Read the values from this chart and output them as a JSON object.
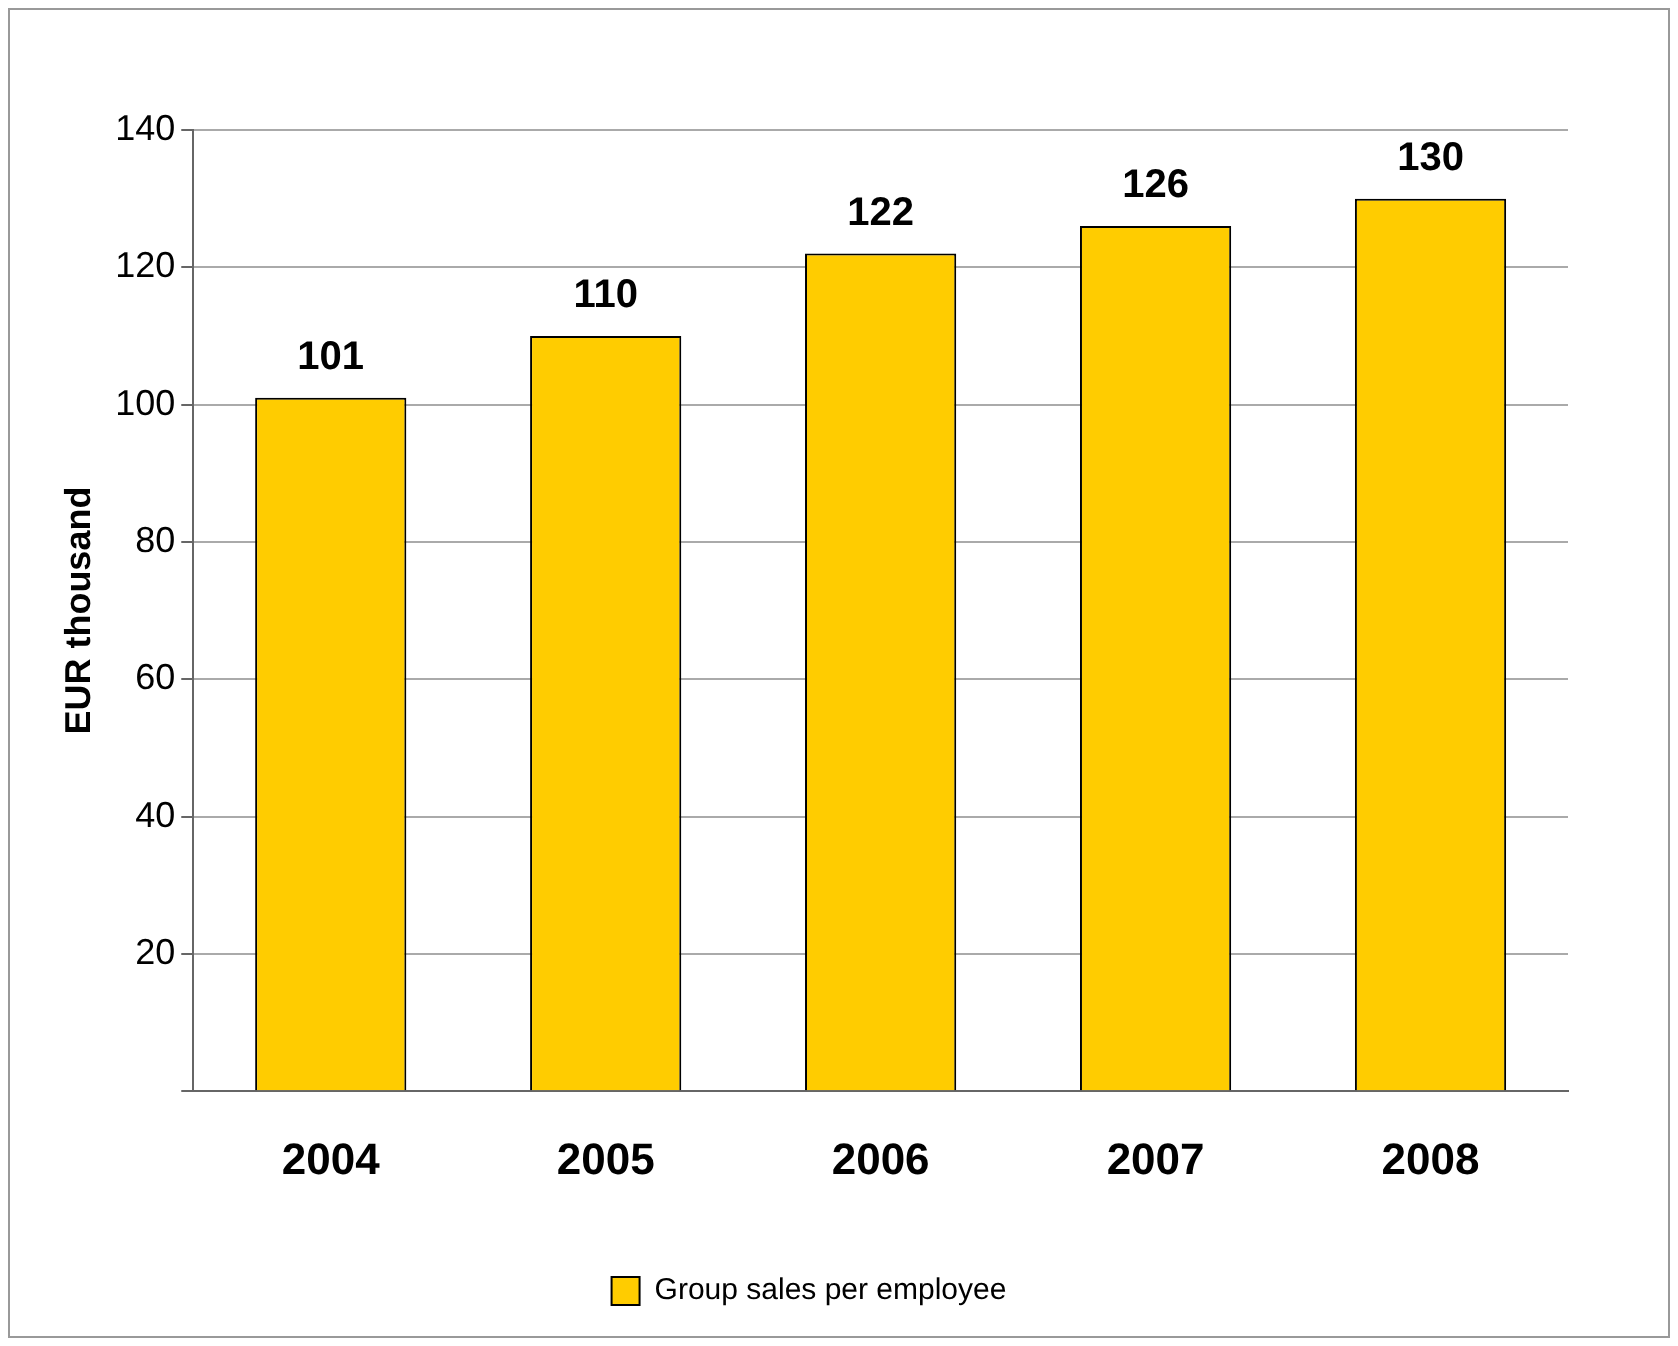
{
  "chart_data": {
    "type": "bar",
    "ylabel": "EUR thousand",
    "categories": [
      "2004",
      "2005",
      "2006",
      "2007",
      "2008"
    ],
    "series": [
      {
        "name": "Group sales per employee",
        "color": "#ffcc00",
        "values": [
          101,
          110,
          122,
          126,
          130
        ]
      }
    ],
    "ylim": [
      0,
      140
    ],
    "yticks": [
      {
        "value": 0,
        "label": null
      },
      20,
      40,
      60,
      80,
      100,
      120,
      140
    ],
    "grid": "y",
    "legend": "bottom",
    "data_labels": true
  }
}
